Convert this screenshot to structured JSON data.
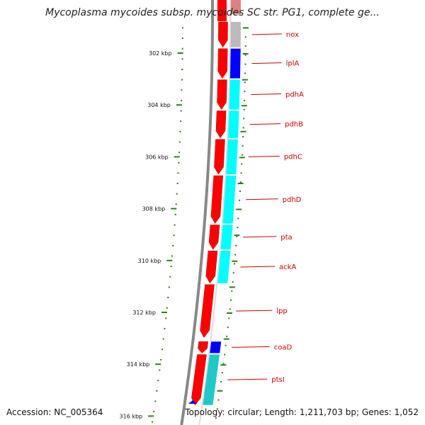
{
  "title": "Mycoplasma mycoides subsp. mycoides SC str. PG1, complete ge...",
  "footer": {
    "accession": "Accession: NC_005364",
    "summary": "Topology: circular; Length: 1,211,703 bp; Genes: 1,052"
  },
  "colors": {
    "cds_strand": "#ff0000",
    "backbone": "#888888",
    "tick": "#2e7d1e",
    "gene_label": "#cc0000",
    "category_blue": "#0000ff",
    "category_cyan": "#00ffff",
    "category_teal": "#20c8c8",
    "category_gray": "#bbbbbb"
  },
  "kbp_ticks": [
    {
      "label": "302 kbp",
      "position_kbp": 302
    },
    {
      "label": "304 kbp",
      "position_kbp": 304
    },
    {
      "label": "306 kbp",
      "position_kbp": 306
    },
    {
      "label": "308 kbp",
      "position_kbp": 308
    },
    {
      "label": "310 kbp",
      "position_kbp": 310
    },
    {
      "label": "312 kbp",
      "position_kbp": 312
    },
    {
      "label": "314 kbp",
      "position_kbp": 314
    },
    {
      "label": "316 kbp",
      "position_kbp": 316
    }
  ],
  "genes": [
    {
      "name": "nox",
      "start_kbp": 300.2,
      "end_kbp": 301.8,
      "category": "gray"
    },
    {
      "name": "lplA",
      "start_kbp": 301.8,
      "end_kbp": 303.0,
      "category": "blue"
    },
    {
      "name": "pdhA",
      "start_kbp": 303.0,
      "end_kbp": 304.2,
      "category": "cyan"
    },
    {
      "name": "pdhB",
      "start_kbp": 304.2,
      "end_kbp": 305.3,
      "category": "cyan"
    },
    {
      "name": "pdhC",
      "start_kbp": 305.3,
      "end_kbp": 306.7,
      "category": "cyan"
    },
    {
      "name": "pdhD",
      "start_kbp": 306.7,
      "end_kbp": 308.6,
      "category": "cyan"
    },
    {
      "name": "pta",
      "start_kbp": 308.6,
      "end_kbp": 309.6,
      "category": "cyan"
    },
    {
      "name": "ackA",
      "start_kbp": 309.6,
      "end_kbp": 310.9,
      "category": "cyan"
    },
    {
      "name": "lpp",
      "start_kbp": 310.9,
      "end_kbp": 313.0,
      "category": "none"
    },
    {
      "name": "coaD",
      "start_kbp": 313.1,
      "end_kbp": 313.6,
      "category": "blue"
    },
    {
      "name": "ptsI",
      "start_kbp": 313.6,
      "end_kbp": 315.6,
      "category": "teal"
    }
  ]
}
